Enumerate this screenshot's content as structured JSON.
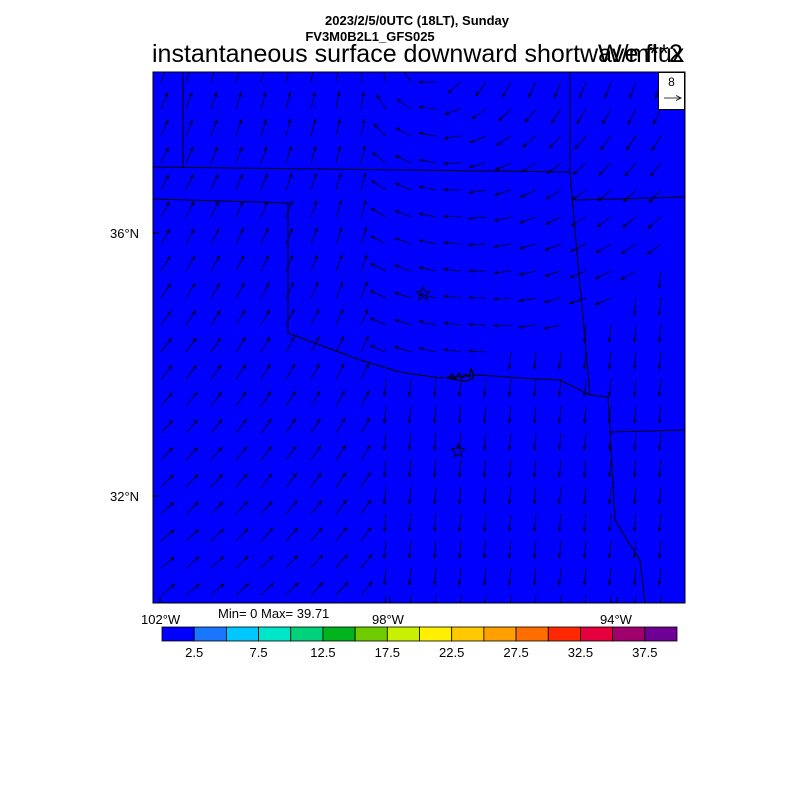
{
  "header": {
    "datetime": "2023/2/5/0UTC (18LT), Sunday",
    "model": "FV3M0B2L1_GFS025",
    "title": "instantaneous surface downward shortwave flux",
    "units": "W/m**2"
  },
  "stats": "Min= 0 Max= 39.71",
  "axes": {
    "lat_labels": [
      "36°N",
      "32°N"
    ],
    "lon_labels": [
      "102°W",
      "98°W",
      "94°W"
    ]
  },
  "wind_reference": {
    "value": "8"
  },
  "colorbar": {
    "colors": [
      "#0000ff",
      "#1a75ff",
      "#00c8ff",
      "#00e6c8",
      "#00d27a",
      "#00b41e",
      "#6ecc00",
      "#c8f000",
      "#fff000",
      "#ffc800",
      "#ffa000",
      "#ff6e00",
      "#ff2800",
      "#e6003c",
      "#a0006e",
      "#6e0096"
    ],
    "labels": [
      "2.5",
      "7.5",
      "12.5",
      "17.5",
      "22.5",
      "27.5",
      "32.5",
      "37.5"
    ]
  },
  "markers": [
    "star",
    "star"
  ]
}
